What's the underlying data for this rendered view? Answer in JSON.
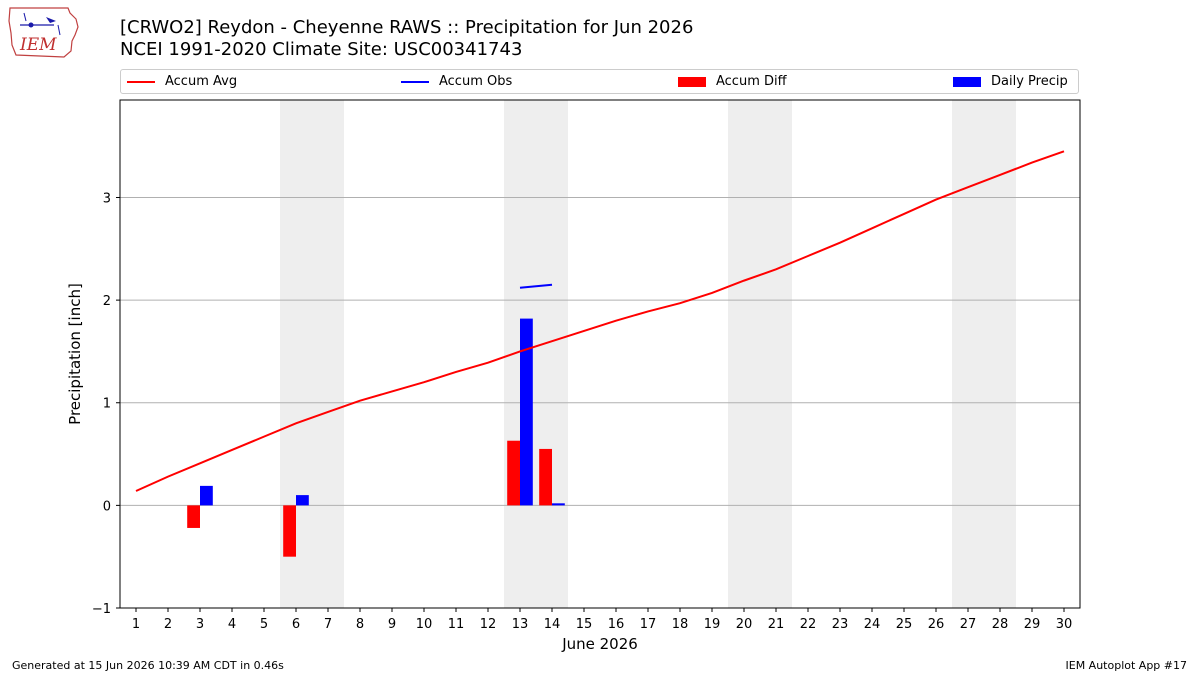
{
  "header": {
    "title_line1": "[CRWO2] Reydon - Cheyenne RAWS :: Precipitation for Jun 2026",
    "title_line2": "NCEI 1991-2020 Climate Site: USC00341743"
  },
  "logo": {
    "text": "IEM",
    "icon": "iem-iowa-logo-icon"
  },
  "legend": [
    {
      "label": "Accum Avg",
      "kind": "line",
      "color": "#ff0000"
    },
    {
      "label": "Accum Obs",
      "kind": "line",
      "color": "#0000ff"
    },
    {
      "label": "Accum Diff",
      "kind": "box",
      "color": "#ff0000"
    },
    {
      "label": "Daily Precip",
      "kind": "box",
      "color": "#0000ff"
    }
  ],
  "footer": {
    "left": "Generated at 15 Jun 2026 10:39 AM CDT in 0.46s",
    "right": "IEM Autoplot App #17"
  },
  "chart_data": {
    "type": "bar",
    "xlabel": "June 2026",
    "ylabel": "Precipitation [inch]",
    "xlim": [
      0.5,
      30.5
    ],
    "ylim": [
      -1,
      3.95
    ],
    "yticks": [
      -1,
      0,
      1,
      2,
      3
    ],
    "ytick_labels": [
      "−1",
      "0",
      "1",
      "2",
      "3"
    ],
    "x": [
      1,
      2,
      3,
      4,
      5,
      6,
      7,
      8,
      9,
      10,
      11,
      12,
      13,
      14,
      15,
      16,
      17,
      18,
      19,
      20,
      21,
      22,
      23,
      24,
      25,
      26,
      27,
      28,
      29,
      30
    ],
    "grid": "y",
    "weekend_shading": [
      [
        5.5,
        7.5
      ],
      [
        12.5,
        14.5
      ],
      [
        19.5,
        21.5
      ],
      [
        26.5,
        28.5
      ]
    ],
    "colors": {
      "avg": "#ff0000",
      "obs": "#0000ff",
      "diff": "#ff0000",
      "daily": "#0000ff",
      "shade": "#eeeeee",
      "grid": "#b0b0b0"
    },
    "series": [
      {
        "name": "Accum Avg",
        "kind": "line",
        "values": [
          0.14,
          0.28,
          0.41,
          0.54,
          0.67,
          0.8,
          0.91,
          1.02,
          1.11,
          1.2,
          1.3,
          1.39,
          1.5,
          1.6,
          1.7,
          1.8,
          1.89,
          1.97,
          2.07,
          2.19,
          2.3,
          2.43,
          2.56,
          2.7,
          2.84,
          2.98,
          3.1,
          3.22,
          3.34,
          3.45
        ]
      },
      {
        "name": "Accum Obs",
        "kind": "line",
        "x": [
          13,
          14
        ],
        "values": [
          2.12,
          2.15
        ]
      },
      {
        "name": "Accum Diff",
        "kind": "bar",
        "x": [
          3,
          6,
          13,
          14
        ],
        "values": [
          -0.22,
          -0.5,
          0.63,
          0.55
        ]
      },
      {
        "name": "Daily Precip",
        "kind": "bar",
        "x": [
          3,
          6,
          13,
          14
        ],
        "values": [
          0.19,
          0.1,
          1.82,
          0.02
        ]
      }
    ]
  }
}
